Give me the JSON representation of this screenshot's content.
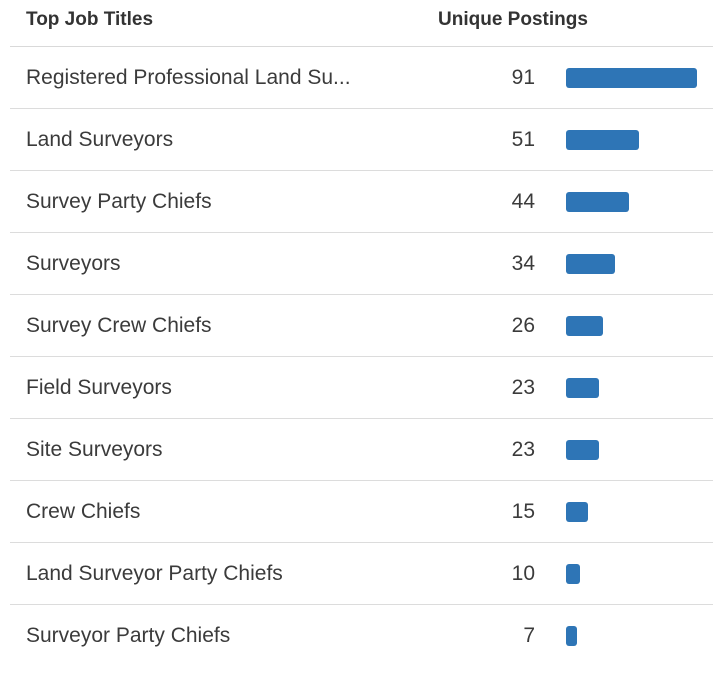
{
  "header": {
    "title_col": "Top Job Titles",
    "count_col": "Unique Postings"
  },
  "colors": {
    "bar": "#2e75b6"
  },
  "chart_data": {
    "type": "bar",
    "orientation": "horizontal",
    "categories": [
      "Registered Professional Land Su...",
      "Land Surveyors",
      "Survey Party Chiefs",
      "Surveyors",
      "Survey Crew Chiefs",
      "Field Surveyors",
      "Site Surveyors",
      "Crew Chiefs",
      "Land Surveyor Party Chiefs",
      "Surveyor Party Chiefs"
    ],
    "values": [
      91,
      51,
      44,
      34,
      26,
      23,
      23,
      15,
      10,
      7
    ],
    "title": "",
    "xlabel": "",
    "ylabel": ""
  }
}
